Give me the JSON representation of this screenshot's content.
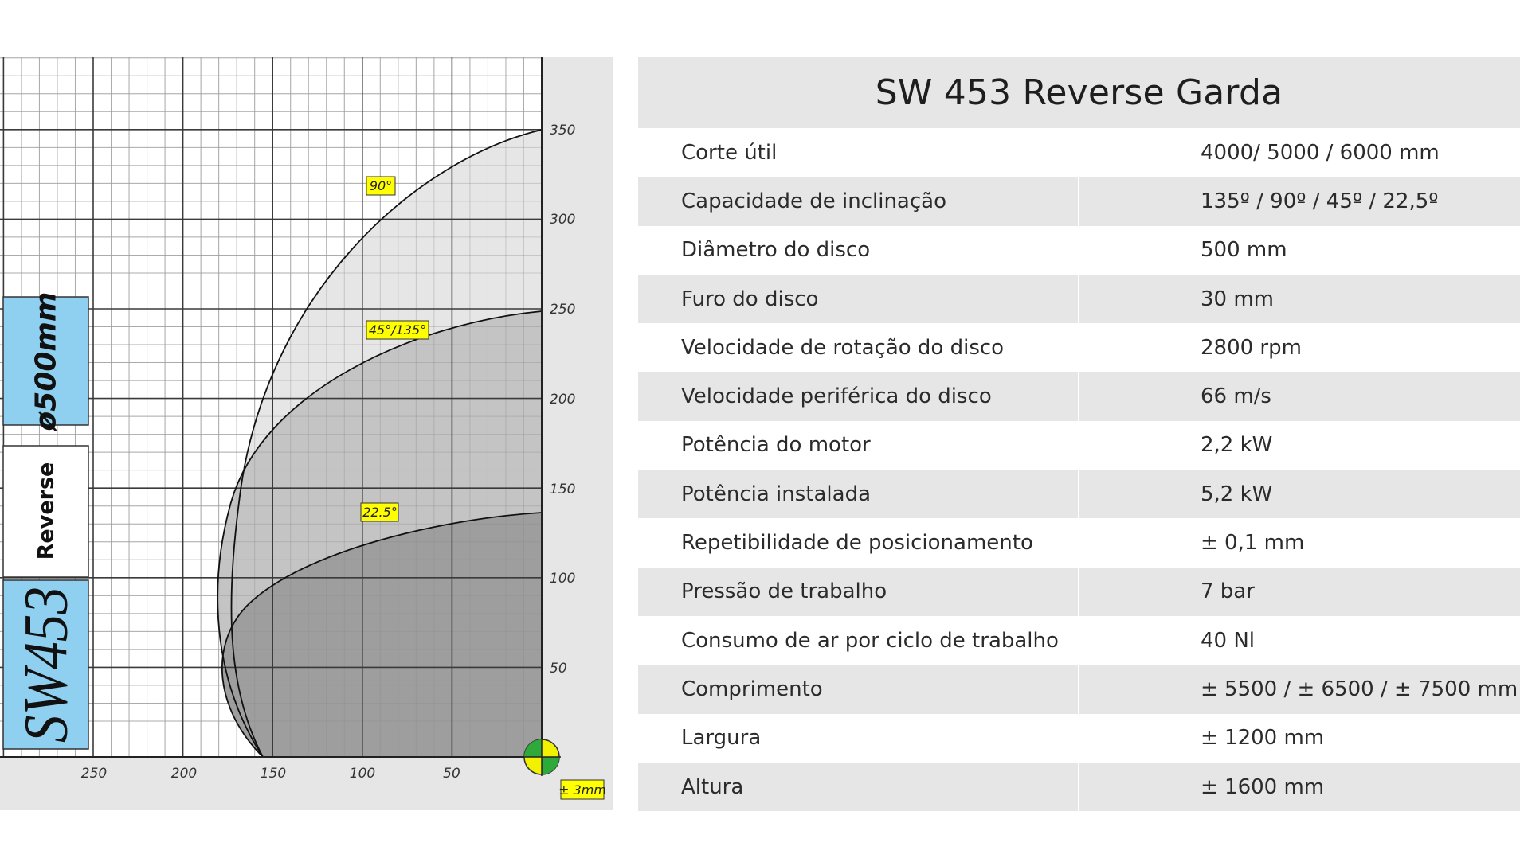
{
  "diagram": {
    "side_labels": {
      "disc": "ø500mm",
      "mode": "Reverse",
      "model": "SW453"
    },
    "y_ticks": [
      "350",
      "300",
      "250",
      "200",
      "150",
      "100",
      "50"
    ],
    "x_ticks": [
      "250",
      "200",
      "150",
      "100",
      "50"
    ],
    "angle_labels": [
      "90°",
      "45°/135°",
      "22.5°"
    ],
    "tolerance": "± 3mm",
    "colors": {
      "side_box_blue": "#8fd0f0",
      "label_yellow": "#ffff00",
      "zone_light": "#e6e6e6",
      "zone_mid": "#c4c4c4",
      "zone_dark": "#9e9e9e"
    }
  },
  "spec": {
    "title": "SW 453 Reverse Garda",
    "rows": [
      {
        "label": "Corte útil",
        "value": "4000/ 5000 / 6000 mm"
      },
      {
        "label": "Capacidade de inclinação",
        "value": "135º / 90º / 45º / 22,5º"
      },
      {
        "label": "Diâmetro do disco",
        "value": "500 mm"
      },
      {
        "label": "Furo do disco",
        "value": "30 mm"
      },
      {
        "label": "Velocidade de rotação do disco",
        "value": "2800 rpm"
      },
      {
        "label": "Velocidade periférica do disco",
        "value": "66 m/s"
      },
      {
        "label": "Potência do motor",
        "value": "2,2 kW"
      },
      {
        "label": "Potência instalada",
        "value": "5,2 kW"
      },
      {
        "label": "Repetibilidade de posicionamento",
        "value": "± 0,1 mm"
      },
      {
        "label": "Pressão de trabalho",
        "value": "7 bar"
      },
      {
        "label": "Consumo de ar por ciclo de trabalho",
        "value": "40 Nl"
      },
      {
        "label": "Comprimento",
        "value": "± 5500 / ± 6500 / ± 7500 mm"
      },
      {
        "label": "Largura",
        "value": "± 1200 mm"
      },
      {
        "label": "Altura",
        "value": "± 1600 mm"
      }
    ]
  }
}
